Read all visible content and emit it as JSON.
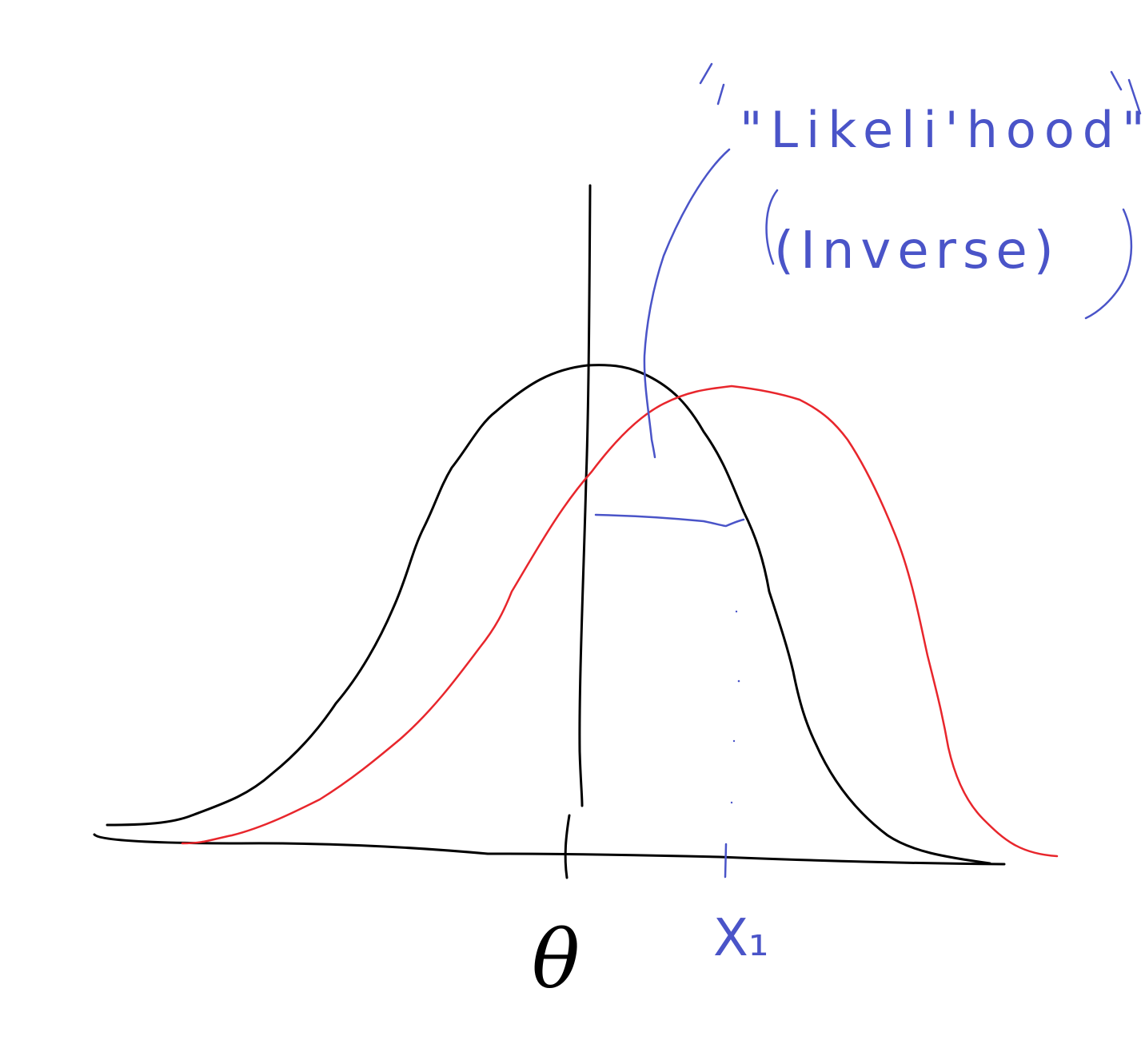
{
  "labels": {
    "annotation_line1": "\"Likeli'hood\"",
    "annotation_line2": "(Inverse)",
    "theta": "θ",
    "x1": "X₁"
  },
  "colors": {
    "background": "#ffffff",
    "black_curve": "#000000",
    "red_curve": "#e8262c",
    "blue_ink": "#4a54c8"
  }
}
